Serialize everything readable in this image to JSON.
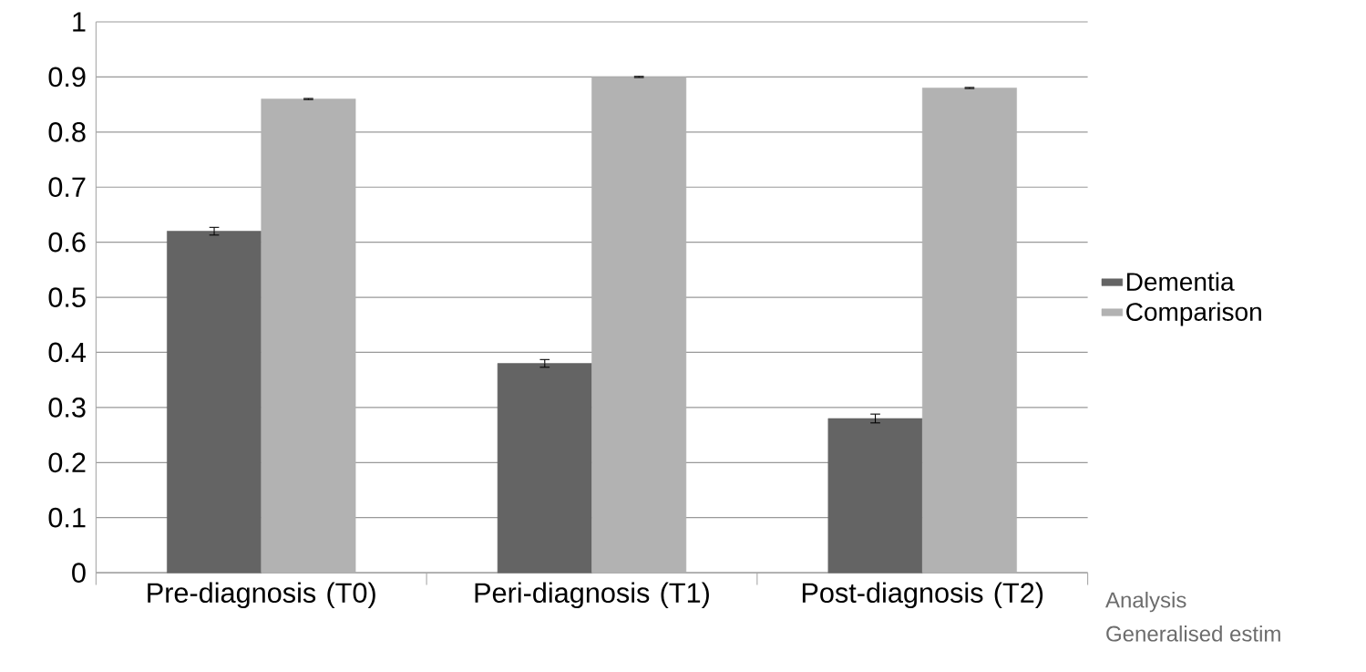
{
  "chart_data": {
    "type": "bar",
    "categories": [
      "Pre-diagnosis (T0)",
      "Peri-diagnosis (T1)",
      "Post-diagnosis (T2)"
    ],
    "series": [
      {
        "name": "Dementia",
        "color": "#646464",
        "values": [
          0.62,
          0.38,
          0.28
        ],
        "errors": [
          0.007,
          0.007,
          0.008
        ]
      },
      {
        "name": "Comparison",
        "color": "#b2b2b2",
        "values": [
          0.86,
          0.9,
          0.88
        ],
        "errors": [
          0.001,
          0.001,
          0.001
        ]
      }
    ],
    "ylim": [
      0,
      1
    ],
    "yticks": [
      0,
      0.1,
      0.2,
      0.3,
      0.4,
      0.5,
      0.6,
      0.7,
      0.8,
      0.9,
      1
    ],
    "grid": "y",
    "legend": "right",
    "annotations": [
      "Analysis",
      "Generalised estim"
    ]
  }
}
